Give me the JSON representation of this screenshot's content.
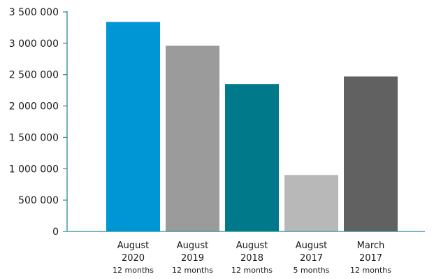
{
  "chart_data": {
    "type": "bar",
    "title": "",
    "xlabel": "",
    "ylabel": "",
    "ylim": [
      0,
      3500000
    ],
    "yticks": [
      0,
      500000,
      1000000,
      1500000,
      2000000,
      2500000,
      3000000,
      3500000
    ],
    "ytick_labels": [
      "0",
      "500 000",
      "1 000 000",
      "1 500 000",
      "2 000 000",
      "2 500 000",
      "3 000 000",
      "3 500 000"
    ],
    "grid": false,
    "categories": [
      {
        "line1": "August",
        "line2": "2020",
        "line3": "12 months"
      },
      {
        "line1": "August",
        "line2": "2019",
        "line3": "12 months"
      },
      {
        "line1": "August",
        "line2": "2018",
        "line3": "12 months"
      },
      {
        "line1": "August",
        "line2": "2017",
        "line3": "5 months"
      },
      {
        "line1": "March",
        "line2": "2017",
        "line3": "12 months"
      }
    ],
    "values": [
      3340000,
      2960000,
      2350000,
      900000,
      2470000
    ],
    "colors": [
      "#0096d6",
      "#9b9b9b",
      "#007a8a",
      "#b8b8b8",
      "#616161"
    ],
    "axis_color": "#2a8a96"
  }
}
